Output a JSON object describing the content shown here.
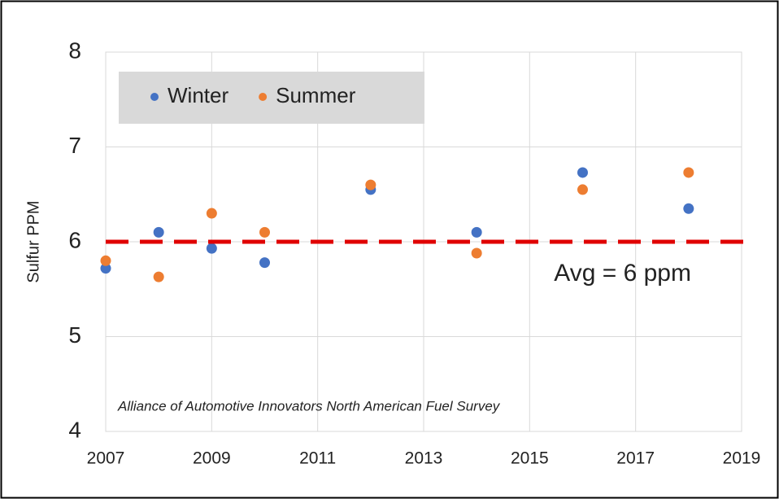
{
  "chart_data": {
    "type": "scatter",
    "ylabel": "Sulfur PPM",
    "xlim": [
      2007,
      2019
    ],
    "xticks": [
      2007,
      2009,
      2011,
      2013,
      2015,
      2017,
      2019
    ],
    "ylim": [
      4,
      8
    ],
    "yticks": [
      4,
      5,
      6,
      7,
      8
    ],
    "grid": true,
    "legend": "upper left",
    "series": [
      {
        "name": "Winter",
        "color": "#4472c4",
        "x": [
          2007,
          2008,
          2009,
          2010,
          2012,
          2014,
          2016,
          2018
        ],
        "values": [
          5.72,
          6.1,
          5.93,
          5.78,
          6.55,
          6.1,
          6.73,
          6.35
        ]
      },
      {
        "name": "Summer",
        "color": "#ed7d31",
        "x": [
          2007,
          2008,
          2009,
          2010,
          2012,
          2014,
          2016,
          2018
        ],
        "values": [
          5.8,
          5.63,
          6.3,
          6.1,
          6.6,
          5.88,
          6.55,
          6.73
        ]
      }
    ],
    "reference_line": {
      "value": 6,
      "label": "Avg = 6 ppm",
      "color": "#e00000",
      "label_color": "#c00000"
    },
    "source": "Alliance of Automotive Innovators  North American Fuel Survey"
  }
}
